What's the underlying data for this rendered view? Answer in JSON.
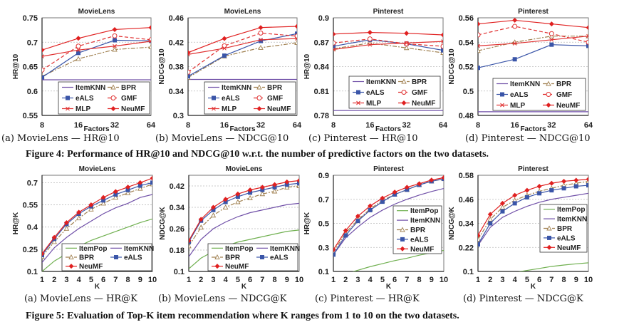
{
  "figure4": {
    "caption_label": "Figure 4:",
    "caption_text": "Performance of HR@10 and NDCG@10 w.r.t. the number of predictive factors on the two datasets.",
    "subcaptions": [
      "(a) MovieLens — HR@10",
      "(b) MovieLens — NDCG@10",
      "(c) Pinterest — HR@10",
      "(d) Pinterest — NDCG@10"
    ]
  },
  "figure5": {
    "caption_label": "Figure 5:",
    "caption_text": "Evaluation of Top-K item recommendation where K ranges from 1 to 10 on the two datasets.",
    "subcaptions": [
      "(a) MovieLens — HR@K",
      "(b) MovieLens — NDCG@K",
      "(c) Pinterest — HR@K",
      "(d) Pinterest — NDCG@K"
    ]
  },
  "colors": {
    "ItemPop": "#70b050",
    "ItemKNN": "#7050a8",
    "BPR": "#a08050",
    "eALS": "#3a55a8",
    "GMF": "#e03030",
    "MLP": "#e03030",
    "NeuMF": "#e02020"
  },
  "chart_data": [
    {
      "type": "line",
      "title": "MovieLens",
      "xlabel": "Factors",
      "ylabel": "HR@10",
      "categories": [
        "8",
        "16",
        "32",
        "64"
      ],
      "ylim": [
        0.55,
        0.75
      ],
      "yticks": [
        "0.55",
        "0.6",
        "0.65",
        "0.7",
        "0.75"
      ],
      "grid": true,
      "legend": [
        "ItemKNN",
        "BPR",
        "eALS",
        "GMF",
        "MLP",
        "NeuMF"
      ],
      "legend_position": "bottom-right",
      "series": [
        {
          "name": "ItemKNN",
          "values": [
            0.623,
            0.623,
            0.623,
            0.623
          ]
        },
        {
          "name": "BPR",
          "values": [
            0.63,
            0.666,
            0.685,
            0.69
          ]
        },
        {
          "name": "eALS",
          "values": [
            0.628,
            0.678,
            0.704,
            0.703
          ]
        },
        {
          "name": "GMF",
          "values": [
            0.643,
            0.692,
            0.713,
            0.705
          ]
        },
        {
          "name": "MLP",
          "values": [
            0.671,
            0.684,
            0.692,
            0.702
          ]
        },
        {
          "name": "NeuMF",
          "values": [
            0.684,
            0.708,
            0.726,
            0.73
          ]
        }
      ]
    },
    {
      "type": "line",
      "title": "MovieLens",
      "xlabel": "Factors",
      "ylabel": "NDCG@10",
      "categories": [
        "8",
        "16",
        "32",
        "64"
      ],
      "ylim": [
        0.3,
        0.46
      ],
      "yticks": [
        "0.3",
        "0.34",
        "0.38",
        "0.42",
        "0.46"
      ],
      "grid": true,
      "legend": [
        "ItemKNN",
        "BPR",
        "eALS",
        "GMF",
        "MLP",
        "NeuMF"
      ],
      "legend_position": "bottom-right",
      "series": [
        {
          "name": "ItemKNN",
          "values": [
            0.359,
            0.359,
            0.359,
            0.359
          ]
        },
        {
          "name": "BPR",
          "values": [
            0.362,
            0.397,
            0.411,
            0.419
          ]
        },
        {
          "name": "eALS",
          "values": [
            0.364,
            0.398,
            0.422,
            0.434
          ]
        },
        {
          "name": "GMF",
          "values": [
            0.371,
            0.414,
            0.435,
            0.43
          ]
        },
        {
          "name": "MLP",
          "values": [
            0.4,
            0.41,
            0.424,
            0.426
          ]
        },
        {
          "name": "NeuMF",
          "values": [
            0.403,
            0.426,
            0.444,
            0.446
          ]
        }
      ]
    },
    {
      "type": "line",
      "title": "Pinterest",
      "xlabel": "Factors",
      "ylabel": "HR@10",
      "categories": [
        "8",
        "16",
        "32",
        "64"
      ],
      "ylim": [
        0.78,
        0.9
      ],
      "yticks": [
        "0.78",
        "0.81",
        "0.84",
        "0.87",
        "0.9"
      ],
      "grid": true,
      "legend": [
        "ItemKNN",
        "BPR",
        "eALS",
        "GMF",
        "MLP",
        "NeuMF"
      ],
      "legend_position": "bottom-center",
      "series": [
        {
          "name": "ItemKNN",
          "values": [
            0.786,
            0.786,
            0.786,
            0.786
          ]
        },
        {
          "name": "BPR",
          "values": [
            0.862,
            0.869,
            0.863,
            0.857
          ]
        },
        {
          "name": "eALS",
          "values": [
            0.865,
            0.873,
            0.868,
            0.86
          ]
        },
        {
          "name": "GMF",
          "values": [
            0.869,
            0.874,
            0.868,
            0.865
          ]
        },
        {
          "name": "MLP",
          "values": [
            0.861,
            0.867,
            0.869,
            0.871
          ]
        },
        {
          "name": "NeuMF",
          "values": [
            0.88,
            0.882,
            0.881,
            0.879
          ]
        }
      ]
    },
    {
      "type": "line",
      "title": "Pinterest",
      "xlabel": "Factors",
      "ylabel": "NDCG@10",
      "categories": [
        "8",
        "16",
        "32",
        "64"
      ],
      "ylim": [
        0.48,
        0.56
      ],
      "yticks": [
        "0.48",
        "0.5",
        "0.52",
        "0.54",
        "0.56"
      ],
      "grid": true,
      "legend": [
        "ItemKNN",
        "BPR",
        "eALS",
        "GMF",
        "MLP",
        "NeuMF"
      ],
      "legend_position": "bottom-right",
      "series": [
        {
          "name": "ItemKNN",
          "values": [
            0.483,
            0.483,
            0.483,
            0.483
          ]
        },
        {
          "name": "BPR",
          "values": [
            0.533,
            0.54,
            0.545,
            0.545
          ]
        },
        {
          "name": "eALS",
          "values": [
            0.519,
            0.526,
            0.538,
            0.537
          ]
        },
        {
          "name": "GMF",
          "values": [
            0.546,
            0.553,
            0.547,
            0.54
          ]
        },
        {
          "name": "MLP",
          "values": [
            0.537,
            0.539,
            0.542,
            0.545
          ]
        },
        {
          "name": "NeuMF",
          "values": [
            0.555,
            0.558,
            0.555,
            0.552
          ]
        }
      ]
    },
    {
      "type": "line",
      "title": "MovieLens",
      "xlabel": "K",
      "ylabel": "HR@K",
      "categories": [
        "1",
        "2",
        "3",
        "4",
        "5",
        "6",
        "7",
        "8",
        "9",
        "10"
      ],
      "ylim": [
        0.1,
        0.75
      ],
      "yticks": [
        "0.1",
        "0.25",
        "0.4",
        "0.55",
        "0.7"
      ],
      "grid": true,
      "legend": [
        "ItemPop",
        "ItemKNN",
        "BPR",
        "eALS",
        "NeuMF"
      ],
      "legend_position": "bottom-right",
      "series": [
        {
          "name": "ItemPop",
          "values": [
            0.1,
            0.17,
            0.22,
            0.27,
            0.31,
            0.34,
            0.37,
            0.4,
            0.43,
            0.455
          ]
        },
        {
          "name": "ItemKNN",
          "values": [
            0.16,
            0.26,
            0.33,
            0.39,
            0.44,
            0.49,
            0.53,
            0.56,
            0.6,
            0.62
          ]
        },
        {
          "name": "BPR",
          "values": [
            0.2,
            0.3,
            0.39,
            0.46,
            0.52,
            0.56,
            0.6,
            0.63,
            0.66,
            0.69
          ]
        },
        {
          "name": "eALS",
          "values": [
            0.21,
            0.32,
            0.42,
            0.49,
            0.54,
            0.58,
            0.62,
            0.65,
            0.68,
            0.7
          ]
        },
        {
          "name": "NeuMF",
          "values": [
            0.22,
            0.33,
            0.43,
            0.5,
            0.55,
            0.6,
            0.64,
            0.67,
            0.7,
            0.73
          ]
        }
      ]
    },
    {
      "type": "line",
      "title": "MovieLens",
      "xlabel": "K",
      "ylabel": "NDCG@K",
      "categories": [
        "1",
        "2",
        "3",
        "4",
        "5",
        "6",
        "7",
        "8",
        "9",
        "10"
      ],
      "ylim": [
        0.1,
        0.46
      ],
      "yticks": [
        "0.1",
        "0.18",
        "0.26",
        "0.34",
        "0.42"
      ],
      "grid": true,
      "legend": [
        "ItemPop",
        "ItemKNN",
        "BPR",
        "eALS",
        "NeuMF"
      ],
      "legend_position": "bottom-right",
      "series": [
        {
          "name": "ItemPop",
          "values": [
            0.11,
            0.15,
            0.175,
            0.195,
            0.21,
            0.22,
            0.23,
            0.24,
            0.25,
            0.255
          ]
        },
        {
          "name": "ItemKNN",
          "values": [
            0.155,
            0.22,
            0.26,
            0.285,
            0.305,
            0.32,
            0.33,
            0.34,
            0.35,
            0.355
          ]
        },
        {
          "name": "BPR",
          "values": [
            0.195,
            0.265,
            0.31,
            0.34,
            0.36,
            0.375,
            0.39,
            0.4,
            0.415,
            0.42
          ]
        },
        {
          "name": "eALS",
          "values": [
            0.21,
            0.29,
            0.33,
            0.36,
            0.38,
            0.395,
            0.405,
            0.415,
            0.425,
            0.43
          ]
        },
        {
          "name": "NeuMF",
          "values": [
            0.215,
            0.295,
            0.34,
            0.37,
            0.39,
            0.405,
            0.415,
            0.425,
            0.435,
            0.44
          ]
        }
      ]
    },
    {
      "type": "line",
      "title": "Pinterest",
      "xlabel": "K",
      "ylabel": "HR@K",
      "categories": [
        "1",
        "2",
        "3",
        "4",
        "5",
        "6",
        "7",
        "8",
        "9",
        "10"
      ],
      "ylim": [
        0.1,
        0.9
      ],
      "yticks": [
        "0.1",
        "0.3",
        "0.5",
        "0.7",
        "0.9"
      ],
      "grid": true,
      "legend": [
        "ItemPop",
        "ItemKNN",
        "BPR",
        "eALS",
        "NeuMF"
      ],
      "legend_position": "right",
      "series": [
        {
          "name": "ItemPop",
          "values": [
            0.05,
            0.08,
            0.11,
            0.14,
            0.165,
            0.19,
            0.21,
            0.235,
            0.255,
            0.275
          ]
        },
        {
          "name": "ItemKNN",
          "values": [
            0.24,
            0.38,
            0.47,
            0.55,
            0.61,
            0.66,
            0.7,
            0.735,
            0.765,
            0.79
          ]
        },
        {
          "name": "BPR",
          "values": [
            0.26,
            0.42,
            0.53,
            0.62,
            0.69,
            0.74,
            0.78,
            0.82,
            0.85,
            0.87
          ]
        },
        {
          "name": "eALS",
          "values": [
            0.24,
            0.4,
            0.52,
            0.61,
            0.68,
            0.74,
            0.78,
            0.82,
            0.85,
            0.87
          ]
        },
        {
          "name": "NeuMF",
          "values": [
            0.28,
            0.44,
            0.56,
            0.645,
            0.71,
            0.76,
            0.8,
            0.83,
            0.86,
            0.88
          ]
        }
      ]
    },
    {
      "type": "line",
      "title": "Pinterest",
      "xlabel": "K",
      "ylabel": "NDCG@K",
      "categories": [
        "1",
        "2",
        "3",
        "4",
        "5",
        "6",
        "7",
        "8",
        "9",
        "10"
      ],
      "ylim": [
        0.1,
        0.58
      ],
      "yticks": [
        "0.1",
        "0.22",
        "0.34",
        "0.46",
        "0.58"
      ],
      "grid": true,
      "legend": [
        "ItemPop",
        "ItemKNN",
        "BPR",
        "eALS",
        "NeuMF"
      ],
      "legend_position": "right",
      "series": [
        {
          "name": "ItemPop",
          "values": [
            0.05,
            0.07,
            0.085,
            0.095,
            0.105,
            0.115,
            0.125,
            0.132,
            0.138,
            0.143
          ]
        },
        {
          "name": "ItemKNN",
          "values": [
            0.23,
            0.32,
            0.37,
            0.4,
            0.425,
            0.445,
            0.46,
            0.47,
            0.48,
            0.49
          ]
        },
        {
          "name": "BPR",
          "values": [
            0.26,
            0.36,
            0.42,
            0.455,
            0.48,
            0.5,
            0.515,
            0.53,
            0.54,
            0.55
          ]
        },
        {
          "name": "eALS",
          "values": [
            0.235,
            0.34,
            0.4,
            0.44,
            0.47,
            0.49,
            0.505,
            0.515,
            0.525,
            0.53
          ]
        },
        {
          "name": "NeuMF",
          "values": [
            0.28,
            0.385,
            0.44,
            0.48,
            0.505,
            0.525,
            0.54,
            0.55,
            0.555,
            0.56
          ]
        }
      ]
    }
  ]
}
